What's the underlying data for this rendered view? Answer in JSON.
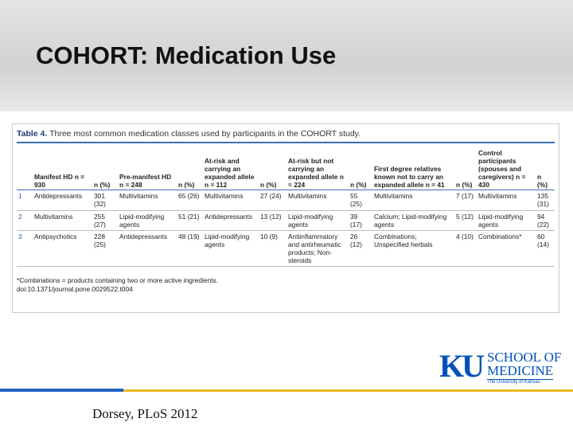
{
  "header": {
    "title": "COHORT: Medication Use"
  },
  "table": {
    "caption_label": "Table 4.",
    "caption": "Three most common medication classes used by participants in the COHORT study.",
    "columns": [
      "",
      "Manifest HD n = 930",
      "n (%)",
      "Pre-manifest HD n = 248",
      "n (%)",
      "At-risk and carrying an expanded allele n = 112",
      "n (%)",
      "At-risk but not carrying an expanded allele n = 224",
      "n (%)",
      "First degree relatives known not to carry an expanded allele n = 41",
      "n (%)",
      "Control participants (spouses and caregivers) n = 430",
      "n (%)"
    ],
    "rows": [
      [
        "1",
        "Antidepressants",
        "301 (32)",
        "Multivitamins",
        "65 (26)",
        "Multivitamins",
        "27 (24)",
        "Multivitamins",
        "55 (25)",
        "Multivitamins",
        "7 (17)",
        "Multivitamins",
        "135 (31)"
      ],
      [
        "2",
        "Multivitamins",
        "255 (27)",
        "Lipid-modifying agents",
        "51 (21)",
        "Antidepressants",
        "13 (12)",
        "Lipid-modifying agents",
        "39 (17)",
        "Calcium; Lipid-modifying agents",
        "5 (12)",
        "Lipid-modifying agents",
        "94 (22)"
      ],
      [
        "3",
        "Antipsychotics",
        "228 (25)",
        "Antidepressants",
        "48 (19)",
        "Lipid-modifying agents",
        "10 (9)",
        "Antiinflammatory and antirheumatic products; Non-steroids",
        "26 (12)",
        "Combinations; Unspecified herbals",
        "4 (10)",
        "Combinations*",
        "60 (14)"
      ]
    ],
    "footnote": "*Combinations = products containing two or more active ingredients.",
    "doi": "doi:10.1371/journal.pone.0029522.t004"
  },
  "logo": {
    "mark": "KU",
    "line1": "SCHOOL OF",
    "line2": "MEDICINE",
    "line3": "The University of Kansas"
  },
  "footer": {
    "citation": "Dorsey, PLoS 2012"
  }
}
